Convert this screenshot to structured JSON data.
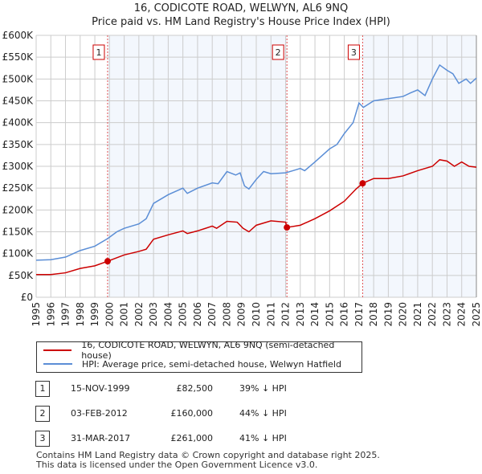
{
  "chart_data": {
    "type": "line",
    "title": "16, CODICOTE ROAD, WELWYN, AL6 9NQ",
    "subtitle": "Price paid vs. HM Land Registry's House Price Index (HPI)",
    "xlim": [
      1995,
      2025
    ],
    "ylim": [
      0,
      600000
    ],
    "x_ticks": [
      "1995",
      "1996",
      "1997",
      "1998",
      "1999",
      "2000",
      "2001",
      "2002",
      "2003",
      "2004",
      "2005",
      "2006",
      "2007",
      "2008",
      "2009",
      "2010",
      "2011",
      "2012",
      "2013",
      "2014",
      "2015",
      "2016",
      "2017",
      "2018",
      "2019",
      "2020",
      "2021",
      "2022",
      "2023",
      "2024",
      "2025"
    ],
    "y_ticks": [
      {
        "v": 0,
        "label": "£0"
      },
      {
        "v": 50000,
        "label": "£50K"
      },
      {
        "v": 100000,
        "label": "£100K"
      },
      {
        "v": 150000,
        "label": "£150K"
      },
      {
        "v": 200000,
        "label": "£200K"
      },
      {
        "v": 250000,
        "label": "£250K"
      },
      {
        "v": 300000,
        "label": "£300K"
      },
      {
        "v": 350000,
        "label": "£350K"
      },
      {
        "v": 400000,
        "label": "£400K"
      },
      {
        "v": 450000,
        "label": "£450K"
      },
      {
        "v": 500000,
        "label": "£500K"
      },
      {
        "v": 550000,
        "label": "£550K"
      },
      {
        "v": 600000,
        "label": "£600K"
      }
    ],
    "grid": true,
    "series": [
      {
        "name": "16, CODICOTE ROAD, WELWYN, AL6 9NQ (semi-detached house)",
        "color": "#cc0000",
        "points": [
          [
            1995,
            52000
          ],
          [
            1996,
            52000
          ],
          [
            1997,
            56000
          ],
          [
            1998,
            66000
          ],
          [
            1999,
            72000
          ],
          [
            1999.87,
            82500
          ],
          [
            2001,
            97000
          ],
          [
            2002,
            105000
          ],
          [
            2002.5,
            110000
          ],
          [
            2003,
            133000
          ],
          [
            2004,
            143000
          ],
          [
            2005,
            152000
          ],
          [
            2005.3,
            146000
          ],
          [
            2006,
            152000
          ],
          [
            2007,
            163000
          ],
          [
            2007.3,
            158000
          ],
          [
            2008,
            174000
          ],
          [
            2008.7,
            172000
          ],
          [
            2009.1,
            158000
          ],
          [
            2009.5,
            150000
          ],
          [
            2010,
            165000
          ],
          [
            2011,
            175000
          ],
          [
            2012,
            172000
          ],
          [
            2012.09,
            160000
          ],
          [
            2013,
            165000
          ],
          [
            2014,
            180000
          ],
          [
            2015,
            198000
          ],
          [
            2016,
            220000
          ],
          [
            2016.8,
            248000
          ],
          [
            2017.25,
            261000
          ],
          [
            2018,
            272000
          ],
          [
            2019,
            272000
          ],
          [
            2020,
            278000
          ],
          [
            2021,
            290000
          ],
          [
            2022,
            300000
          ],
          [
            2022.5,
            315000
          ],
          [
            2023,
            312000
          ],
          [
            2023.5,
            300000
          ],
          [
            2024,
            310000
          ],
          [
            2024.5,
            300000
          ],
          [
            2025,
            298000
          ]
        ]
      },
      {
        "name": "HPI: Average price, semi-detached house, Welwyn Hatfield",
        "color": "#5b8ed6",
        "points": [
          [
            1995,
            85000
          ],
          [
            1996,
            86000
          ],
          [
            1997,
            92000
          ],
          [
            1998,
            107000
          ],
          [
            1999,
            117000
          ],
          [
            1999.9,
            135000
          ],
          [
            2000.5,
            150000
          ],
          [
            2001,
            158000
          ],
          [
            2002,
            168000
          ],
          [
            2002.5,
            180000
          ],
          [
            2003,
            215000
          ],
          [
            2004,
            235000
          ],
          [
            2005,
            250000
          ],
          [
            2005.3,
            238000
          ],
          [
            2006,
            250000
          ],
          [
            2007,
            262000
          ],
          [
            2007.4,
            260000
          ],
          [
            2008,
            288000
          ],
          [
            2008.6,
            280000
          ],
          [
            2008.9,
            285000
          ],
          [
            2009.2,
            255000
          ],
          [
            2009.5,
            248000
          ],
          [
            2010,
            270000
          ],
          [
            2010.5,
            288000
          ],
          [
            2011,
            283000
          ],
          [
            2012,
            285000
          ],
          [
            2012.5,
            290000
          ],
          [
            2013,
            295000
          ],
          [
            2013.3,
            290000
          ],
          [
            2014,
            310000
          ],
          [
            2015,
            340000
          ],
          [
            2015.5,
            350000
          ],
          [
            2016,
            375000
          ],
          [
            2016.6,
            400000
          ],
          [
            2017,
            445000
          ],
          [
            2017.3,
            435000
          ],
          [
            2018,
            450000
          ],
          [
            2019,
            455000
          ],
          [
            2020,
            460000
          ],
          [
            2020.5,
            468000
          ],
          [
            2021,
            475000
          ],
          [
            2021.5,
            462000
          ],
          [
            2022,
            500000
          ],
          [
            2022.5,
            532000
          ],
          [
            2023,
            520000
          ],
          [
            2023.4,
            512000
          ],
          [
            2023.8,
            490000
          ],
          [
            2024.3,
            500000
          ],
          [
            2024.6,
            490000
          ],
          [
            2025,
            502000
          ]
        ]
      }
    ],
    "sales": [
      {
        "id": "1",
        "date": "15-NOV-1999",
        "x": 1999.87,
        "price": 82500,
        "price_label": "£82,500",
        "hpi_diff": "39% ↓ HPI"
      },
      {
        "id": "2",
        "date": "03-FEB-2012",
        "x": 2012.09,
        "price": 160000,
        "price_label": "£160,000",
        "hpi_diff": "44% ↓ HPI"
      },
      {
        "id": "3",
        "date": "31-MAR-2017",
        "x": 2017.25,
        "price": 261000,
        "price_label": "£261,000",
        "hpi_diff": "41% ↓ HPI"
      }
    ],
    "legend_placement": "below"
  },
  "footer": [
    "Contains HM Land Registry data © Crown copyright and database right 2025.",
    "This data is licensed under the Open Government Licence v3.0."
  ]
}
